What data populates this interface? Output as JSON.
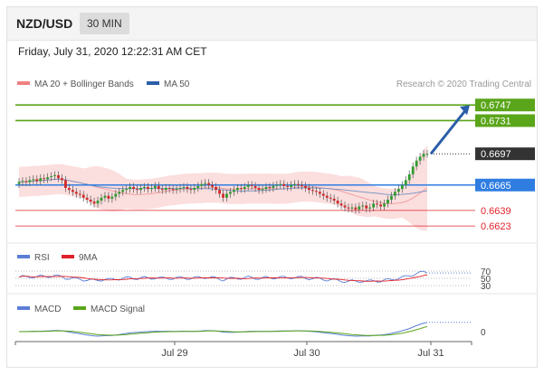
{
  "header": {
    "pair": "NZD/USD",
    "timeframe": "30 MIN"
  },
  "datetime": "Friday, July 31, 2020 12:22:31 AM CET",
  "legend": {
    "bb": "MA 20 + Bollinger Bands",
    "ma50": "MA 50",
    "credit": "Research © 2020 Trading Central",
    "rsi": "RSI",
    "rsi_ma": "9MA",
    "macd": "MACD",
    "macd_signal": "MACD Signal"
  },
  "colors": {
    "green": "#5aa51a",
    "blue": "#2f7de1",
    "red": "#e2222a",
    "dark": "#333333",
    "candle_up": "#2f9b2f",
    "candle_down": "#d02a2a",
    "bb_fill": "#f9d3d3",
    "ma50": "#8099c4",
    "arrow": "#2b5ea8"
  },
  "chart_data": [
    {
      "type": "candlestick",
      "title": "NZD/USD",
      "x_ticks": [
        "Jul 29",
        "Jul 30",
        "Jul 31"
      ],
      "ylim": [
        0.6612,
        0.6762
      ],
      "series": [
        {
          "name": "MA 20 + Bollinger Bands"
        },
        {
          "name": "MA 50"
        }
      ],
      "close_approx": [
        0.6668,
        0.6669,
        0.6668,
        0.667,
        0.6671,
        0.6669,
        0.6672,
        0.6671,
        0.6673,
        0.6674,
        0.6675,
        0.6672,
        0.667,
        0.6662,
        0.666,
        0.6658,
        0.6656,
        0.6655,
        0.6652,
        0.665,
        0.6648,
        0.6646,
        0.6649,
        0.6652,
        0.6654,
        0.6651,
        0.6653,
        0.6656,
        0.6658,
        0.666,
        0.6661,
        0.6663,
        0.6661,
        0.666,
        0.6662,
        0.6663,
        0.6661,
        0.6662,
        0.6664,
        0.6661,
        0.666,
        0.6662,
        0.6661,
        0.666,
        0.6661,
        0.6662,
        0.6663,
        0.6661,
        0.666,
        0.6662,
        0.6664,
        0.6666,
        0.6667,
        0.6665,
        0.6663,
        0.666,
        0.6656,
        0.6652,
        0.6656,
        0.6658,
        0.666,
        0.6662,
        0.6661,
        0.6663,
        0.6665,
        0.6664,
        0.6662,
        0.666,
        0.6661,
        0.6663,
        0.6662,
        0.6664,
        0.6665,
        0.6666,
        0.6664,
        0.6663,
        0.6665,
        0.6666,
        0.6665,
        0.6664,
        0.6662,
        0.666,
        0.6659,
        0.6658,
        0.6656,
        0.6654,
        0.6652,
        0.6651,
        0.6649,
        0.6646,
        0.6644,
        0.6642,
        0.6641,
        0.6642,
        0.664,
        0.6643,
        0.6644,
        0.6641,
        0.6642,
        0.6646,
        0.6645,
        0.6643,
        0.6646,
        0.665,
        0.6654,
        0.6658,
        0.6661,
        0.6665,
        0.667,
        0.6676,
        0.6684,
        0.669,
        0.6694,
        0.6697,
        0.6697
      ],
      "horizontal_levels": [
        {
          "value": 0.6747,
          "label": "0.6747",
          "color": "green"
        },
        {
          "value": 0.6731,
          "label": "0.6731",
          "color": "green"
        },
        {
          "value": 0.6697,
          "label": "0.6697",
          "color": "dark"
        },
        {
          "value": 0.6665,
          "label": "0.6665",
          "color": "blue"
        },
        {
          "value": 0.6639,
          "label": "0.6639",
          "color": "red"
        },
        {
          "value": 0.6623,
          "label": "0.6623",
          "color": "red"
        }
      ],
      "projection_target": 0.6747
    },
    {
      "type": "line",
      "title": "RSI",
      "y_ticks": [
        70,
        50,
        30
      ],
      "ylim": [
        20,
        80
      ],
      "series": [
        {
          "name": "RSI"
        },
        {
          "name": "9MA"
        }
      ]
    },
    {
      "type": "line",
      "title": "MACD",
      "y_ticks": [
        0
      ],
      "series": [
        {
          "name": "MACD"
        },
        {
          "name": "MACD Signal"
        }
      ]
    }
  ]
}
